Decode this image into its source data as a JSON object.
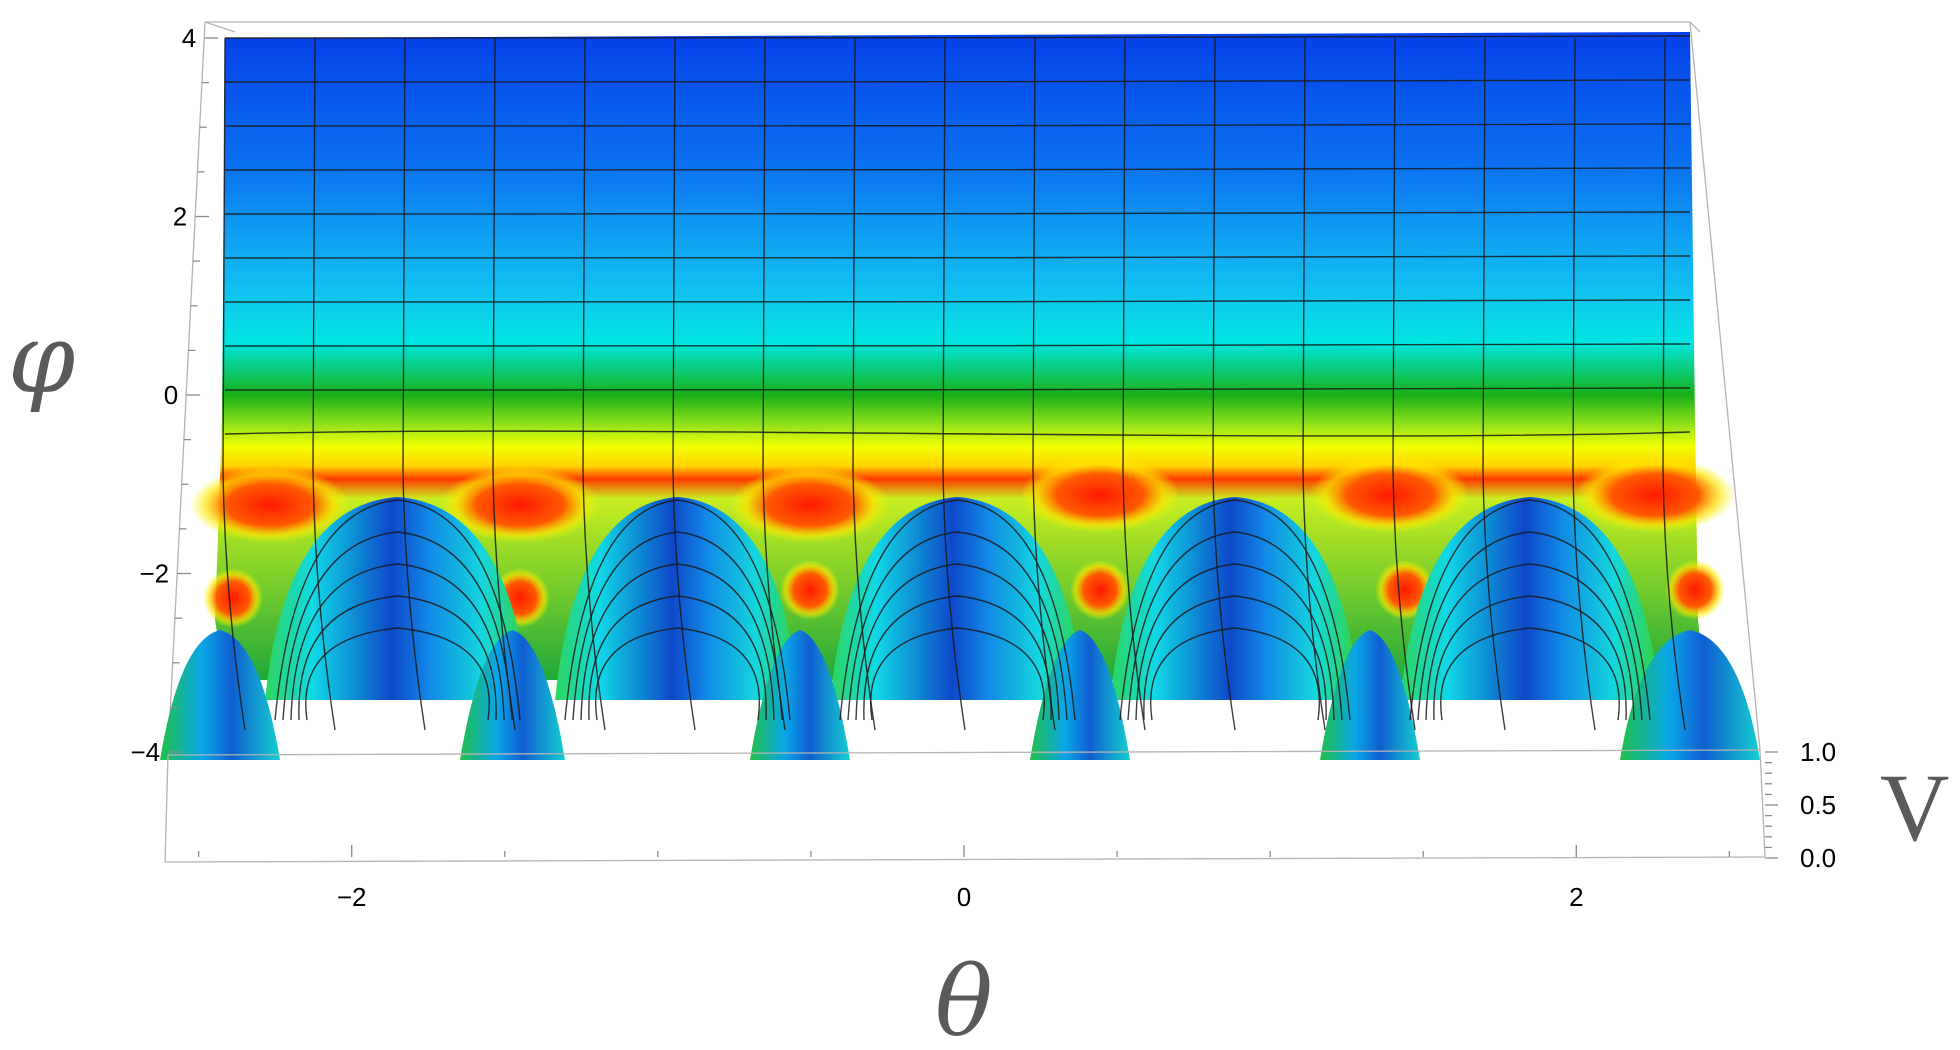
{
  "chart_data": {
    "type": "surface3d",
    "axes": {
      "x": {
        "label": "θ",
        "ticks": [
          -2,
          0,
          2
        ],
        "tick_labels": [
          "−2",
          "0",
          "2"
        ],
        "range": [
          -2.6,
          2.6
        ]
      },
      "z": {
        "label": "φ",
        "ticks": [
          -4,
          -2,
          0,
          2,
          4
        ],
        "tick_labels": [
          "−4",
          "−2",
          "0",
          "2",
          "4"
        ],
        "range": [
          -4,
          4
        ]
      },
      "y": {
        "label": "V",
        "ticks": [
          0.0,
          0.5,
          1.0
        ],
        "tick_labels": [
          "0.0",
          "0.5",
          "1.0"
        ],
        "range": [
          0,
          1
        ]
      }
    },
    "colormap": [
      "#0a2f8c",
      "#0b5ae6",
      "#12c7f0",
      "#00e5e5",
      "#19b319",
      "#f0ff00",
      "#ff2a00"
    ],
    "mesh": true,
    "box": true
  }
}
